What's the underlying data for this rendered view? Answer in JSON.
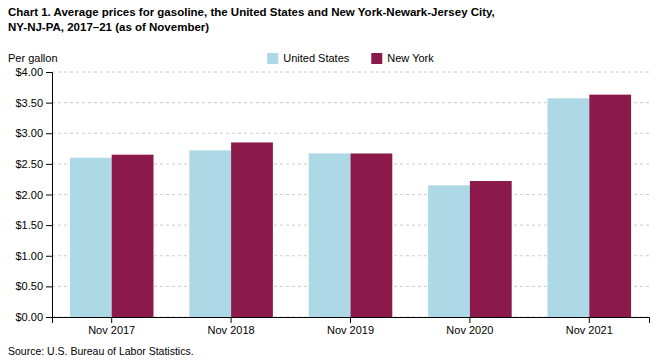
{
  "chart_data": {
    "type": "bar",
    "title": "Chart 1. Average prices for gasoline, the United States and New York-Newark-Jersey City,\nNY-NJ-PA, 2017–21 (as of November)",
    "y_label": "Per gallon",
    "source": "Source: U.S. Bureau of Labor Statistics.",
    "categories": [
      "Nov 2017",
      "Nov 2018",
      "Nov 2019",
      "Nov 2020",
      "Nov 2021"
    ],
    "series": [
      {
        "name": "United States",
        "color": "#ADD8E6",
        "values": [
          2.6,
          2.72,
          2.67,
          2.15,
          3.57
        ]
      },
      {
        "name": "New York",
        "color": "#8B1A4A",
        "values": [
          2.65,
          2.85,
          2.67,
          2.22,
          3.63
        ]
      }
    ],
    "ylim": [
      0,
      4
    ],
    "yticks": [
      {
        "value": 0,
        "label": "$0.00"
      },
      {
        "value": 0.5,
        "label": "$0.50"
      },
      {
        "value": 1,
        "label": "$1.00"
      },
      {
        "value": 1.5,
        "label": "$1.50"
      },
      {
        "value": 2,
        "label": "$2.00"
      },
      {
        "value": 2.5,
        "label": "$2.50"
      },
      {
        "value": 3,
        "label": "$3.00"
      },
      {
        "value": 3.5,
        "label": "$3.50"
      },
      {
        "value": 4,
        "label": "$4.00"
      }
    ],
    "grid": true,
    "legend": "top"
  }
}
